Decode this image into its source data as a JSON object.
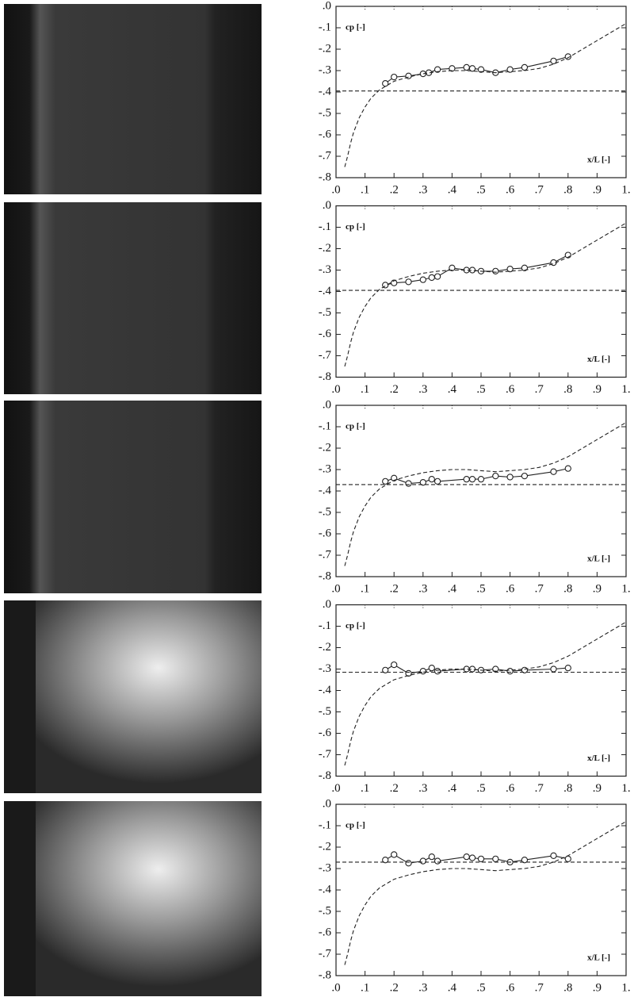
{
  "chart_data": [
    {
      "type": "line",
      "xlabel": "x/L [-]",
      "ylabel": "cp [-]",
      "xlim": [
        0,
        1
      ],
      "ylim": [
        -0.8,
        0
      ],
      "xticks": [
        {
          "value": 0,
          "label": ".0"
        },
        {
          "value": 0.1,
          "label": ".1"
        },
        {
          "value": 0.2,
          "label": ".2"
        },
        {
          "value": 0.3,
          "label": ".3"
        },
        {
          "value": 0.4,
          "label": ".4"
        },
        {
          "value": 0.5,
          "label": ".5"
        },
        {
          "value": 0.6,
          "label": ".6"
        },
        {
          "value": 0.7,
          "label": ".7"
        },
        {
          "value": 0.8,
          "label": ".8"
        },
        {
          "value": 0.9,
          "label": ".9"
        },
        {
          "value": 1,
          "label": "1."
        }
      ],
      "yticks": [
        {
          "value": 0,
          "label": ".0"
        },
        {
          "value": -0.1,
          "label": "-.1"
        },
        {
          "value": -0.2,
          "label": "-.2"
        },
        {
          "value": -0.3,
          "label": "-.3"
        },
        {
          "value": -0.4,
          "label": "-.4"
        },
        {
          "value": -0.5,
          "label": "-.5"
        },
        {
          "value": -0.6,
          "label": "-.6"
        },
        {
          "value": -0.7,
          "label": "-.7"
        },
        {
          "value": -0.8,
          "label": "-.8"
        }
      ],
      "series": [
        {
          "color": "#222",
          "linestyle": "solid",
          "marker": "circle",
          "x": [
            0.17,
            0.2,
            0.25,
            0.3,
            0.32,
            0.35,
            0.4,
            0.45,
            0.47,
            0.5,
            0.55,
            0.6,
            0.65,
            0.75,
            0.8
          ],
          "values": [
            -0.36,
            -0.33,
            -0.325,
            -0.315,
            -0.31,
            -0.295,
            -0.29,
            -0.285,
            -0.29,
            -0.295,
            -0.31,
            -0.295,
            -0.285,
            -0.255,
            -0.235
          ]
        },
        {
          "color": "#222",
          "linestyle": "dashed",
          "x": [
            0.03,
            0.04,
            0.05,
            0.06,
            0.08,
            0.1,
            0.12,
            0.15,
            0.2,
            0.25,
            0.3,
            0.35,
            0.4,
            0.45,
            0.5,
            0.55,
            0.6,
            0.65,
            0.7,
            0.75,
            0.8,
            0.85,
            0.9,
            0.95,
            1.0
          ],
          "values": [
            -0.75,
            -0.7,
            -0.64,
            -0.59,
            -0.52,
            -0.47,
            -0.43,
            -0.39,
            -0.35,
            -0.33,
            -0.315,
            -0.305,
            -0.3,
            -0.3,
            -0.305,
            -0.31,
            -0.305,
            -0.3,
            -0.29,
            -0.27,
            -0.24,
            -0.2,
            -0.16,
            -0.12,
            -0.08
          ]
        },
        {
          "color": "#222",
          "linestyle": "dashed",
          "x": [
            0,
            1
          ],
          "values": [
            -0.395,
            -0.395
          ]
        }
      ]
    },
    {
      "type": "line",
      "xlabel": "x/L [-]",
      "ylabel": "cp [-]",
      "xlim": [
        0,
        1
      ],
      "ylim": [
        -0.8,
        0
      ],
      "xticks": [
        {
          "value": 0,
          "label": ".0"
        },
        {
          "value": 0.1,
          "label": ".1"
        },
        {
          "value": 0.2,
          "label": ".2"
        },
        {
          "value": 0.3,
          "label": ".3"
        },
        {
          "value": 0.4,
          "label": ".4"
        },
        {
          "value": 0.5,
          "label": ".5"
        },
        {
          "value": 0.6,
          "label": ".6"
        },
        {
          "value": 0.7,
          "label": ".7"
        },
        {
          "value": 0.8,
          "label": ".8"
        },
        {
          "value": 0.9,
          "label": ".9"
        },
        {
          "value": 1,
          "label": "1."
        }
      ],
      "yticks": [
        {
          "value": 0,
          "label": ".0"
        },
        {
          "value": -0.1,
          "label": "-.1"
        },
        {
          "value": -0.2,
          "label": "-.2"
        },
        {
          "value": -0.3,
          "label": "-.3"
        },
        {
          "value": -0.4,
          "label": "-.4"
        },
        {
          "value": -0.5,
          "label": "-.5"
        },
        {
          "value": -0.6,
          "label": "-.6"
        },
        {
          "value": -0.7,
          "label": "-.7"
        },
        {
          "value": -0.8,
          "label": "-.8"
        }
      ],
      "series": [
        {
          "color": "#222",
          "linestyle": "solid",
          "marker": "circle",
          "x": [
            0.17,
            0.2,
            0.25,
            0.3,
            0.33,
            0.35,
            0.4,
            0.45,
            0.47,
            0.5,
            0.55,
            0.6,
            0.65,
            0.75,
            0.8
          ],
          "values": [
            -0.37,
            -0.36,
            -0.355,
            -0.345,
            -0.335,
            -0.33,
            -0.29,
            -0.3,
            -0.3,
            -0.305,
            -0.305,
            -0.295,
            -0.29,
            -0.265,
            -0.23
          ]
        },
        {
          "color": "#222",
          "linestyle": "dashed",
          "x": [
            0.03,
            0.04,
            0.05,
            0.06,
            0.08,
            0.1,
            0.12,
            0.15,
            0.2,
            0.25,
            0.3,
            0.35,
            0.4,
            0.45,
            0.5,
            0.55,
            0.6,
            0.65,
            0.7,
            0.75,
            0.8,
            0.85,
            0.9,
            0.95,
            1.0
          ],
          "values": [
            -0.75,
            -0.7,
            -0.64,
            -0.59,
            -0.52,
            -0.47,
            -0.43,
            -0.39,
            -0.35,
            -0.33,
            -0.315,
            -0.305,
            -0.3,
            -0.3,
            -0.305,
            -0.31,
            -0.305,
            -0.3,
            -0.29,
            -0.27,
            -0.24,
            -0.2,
            -0.16,
            -0.12,
            -0.08
          ]
        },
        {
          "color": "#222",
          "linestyle": "dashed",
          "x": [
            0,
            1
          ],
          "values": [
            -0.395,
            -0.395
          ]
        }
      ]
    },
    {
      "type": "line",
      "xlabel": "x/L [-]",
      "ylabel": "cp [-]",
      "xlim": [
        0,
        1
      ],
      "ylim": [
        -0.8,
        0
      ],
      "xticks": [
        {
          "value": 0,
          "label": ".0"
        },
        {
          "value": 0.1,
          "label": ".1"
        },
        {
          "value": 0.2,
          "label": ".2"
        },
        {
          "value": 0.3,
          "label": ".3"
        },
        {
          "value": 0.4,
          "label": ".4"
        },
        {
          "value": 0.5,
          "label": ".5"
        },
        {
          "value": 0.6,
          "label": ".6"
        },
        {
          "value": 0.7,
          "label": ".7"
        },
        {
          "value": 0.8,
          "label": ".8"
        },
        {
          "value": 0.9,
          "label": ".9"
        },
        {
          "value": 1,
          "label": "1."
        }
      ],
      "yticks": [
        {
          "value": 0,
          "label": ".0"
        },
        {
          "value": -0.1,
          "label": "-.1"
        },
        {
          "value": -0.2,
          "label": "-.2"
        },
        {
          "value": -0.3,
          "label": "-.3"
        },
        {
          "value": -0.4,
          "label": "-.4"
        },
        {
          "value": -0.5,
          "label": "-.5"
        },
        {
          "value": -0.6,
          "label": "-.6"
        },
        {
          "value": -0.7,
          "label": "-.7"
        },
        {
          "value": -0.8,
          "label": "-.8"
        }
      ],
      "series": [
        {
          "color": "#222",
          "linestyle": "solid",
          "marker": "circle",
          "x": [
            0.17,
            0.2,
            0.25,
            0.3,
            0.33,
            0.35,
            0.45,
            0.47,
            0.5,
            0.55,
            0.6,
            0.65,
            0.75,
            0.8
          ],
          "values": [
            -0.355,
            -0.34,
            -0.365,
            -0.36,
            -0.345,
            -0.355,
            -0.345,
            -0.345,
            -0.345,
            -0.33,
            -0.335,
            -0.33,
            -0.31,
            -0.295
          ]
        },
        {
          "color": "#222",
          "linestyle": "dashed",
          "x": [
            0.03,
            0.04,
            0.05,
            0.06,
            0.08,
            0.1,
            0.12,
            0.15,
            0.2,
            0.25,
            0.3,
            0.35,
            0.4,
            0.45,
            0.5,
            0.55,
            0.6,
            0.65,
            0.7,
            0.75,
            0.8,
            0.85,
            0.9,
            0.95,
            1.0
          ],
          "values": [
            -0.75,
            -0.7,
            -0.64,
            -0.59,
            -0.52,
            -0.47,
            -0.43,
            -0.39,
            -0.35,
            -0.33,
            -0.315,
            -0.305,
            -0.3,
            -0.3,
            -0.305,
            -0.31,
            -0.305,
            -0.3,
            -0.29,
            -0.27,
            -0.24,
            -0.2,
            -0.16,
            -0.12,
            -0.08
          ]
        },
        {
          "color": "#222",
          "linestyle": "dashed",
          "x": [
            0,
            1
          ],
          "values": [
            -0.37,
            -0.37
          ]
        }
      ]
    },
    {
      "type": "line",
      "xlabel": "x/L [-]",
      "ylabel": "cp [-]",
      "xlim": [
        0,
        1
      ],
      "ylim": [
        -0.8,
        0
      ],
      "xticks": [
        {
          "value": 0,
          "label": ".0"
        },
        {
          "value": 0.1,
          "label": ".1"
        },
        {
          "value": 0.2,
          "label": ".2"
        },
        {
          "value": 0.3,
          "label": ".3"
        },
        {
          "value": 0.4,
          "label": ".4"
        },
        {
          "value": 0.5,
          "label": ".5"
        },
        {
          "value": 0.6,
          "label": ".6"
        },
        {
          "value": 0.7,
          "label": ".7"
        },
        {
          "value": 0.8,
          "label": ".8"
        },
        {
          "value": 0.9,
          "label": ".9"
        },
        {
          "value": 1,
          "label": "1."
        }
      ],
      "yticks": [
        {
          "value": 0,
          "label": ".0"
        },
        {
          "value": -0.1,
          "label": "-.1"
        },
        {
          "value": -0.2,
          "label": "-.2"
        },
        {
          "value": -0.3,
          "label": "-.3"
        },
        {
          "value": -0.4,
          "label": "-.4"
        },
        {
          "value": -0.5,
          "label": "-.5"
        },
        {
          "value": -0.6,
          "label": "-.6"
        },
        {
          "value": -0.7,
          "label": "-.7"
        },
        {
          "value": -0.8,
          "label": "-.8"
        }
      ],
      "series": [
        {
          "color": "#222",
          "linestyle": "solid",
          "marker": "circle",
          "x": [
            0.17,
            0.2,
            0.25,
            0.3,
            0.33,
            0.35,
            0.45,
            0.47,
            0.5,
            0.55,
            0.6,
            0.65,
            0.75,
            0.8
          ],
          "values": [
            -0.305,
            -0.28,
            -0.32,
            -0.31,
            -0.295,
            -0.31,
            -0.3,
            -0.3,
            -0.305,
            -0.3,
            -0.31,
            -0.305,
            -0.3,
            -0.295
          ]
        },
        {
          "color": "#222",
          "linestyle": "dashed",
          "x": [
            0.03,
            0.04,
            0.05,
            0.06,
            0.08,
            0.1,
            0.12,
            0.15,
            0.2,
            0.25,
            0.3,
            0.35,
            0.4,
            0.45,
            0.5,
            0.55,
            0.6,
            0.65,
            0.7,
            0.75,
            0.8,
            0.85,
            0.9,
            0.95,
            1.0
          ],
          "values": [
            -0.75,
            -0.7,
            -0.64,
            -0.59,
            -0.52,
            -0.47,
            -0.43,
            -0.39,
            -0.35,
            -0.33,
            -0.315,
            -0.305,
            -0.3,
            -0.3,
            -0.305,
            -0.31,
            -0.305,
            -0.3,
            -0.29,
            -0.27,
            -0.24,
            -0.2,
            -0.16,
            -0.12,
            -0.08
          ]
        },
        {
          "color": "#222",
          "linestyle": "dashed",
          "x": [
            0,
            1
          ],
          "values": [
            -0.315,
            -0.315
          ]
        }
      ]
    },
    {
      "type": "line",
      "xlabel": "x/L [-]",
      "ylabel": "cp [-]",
      "xlim": [
        0,
        1
      ],
      "ylim": [
        -0.8,
        0
      ],
      "xticks": [
        {
          "value": 0,
          "label": ".0"
        },
        {
          "value": 0.1,
          "label": ".1"
        },
        {
          "value": 0.2,
          "label": ".2"
        },
        {
          "value": 0.3,
          "label": ".3"
        },
        {
          "value": 0.4,
          "label": ".4"
        },
        {
          "value": 0.5,
          "label": ".5"
        },
        {
          "value": 0.6,
          "label": ".6"
        },
        {
          "value": 0.7,
          "label": ".7"
        },
        {
          "value": 0.8,
          "label": ".8"
        },
        {
          "value": 0.9,
          "label": ".9"
        },
        {
          "value": 1,
          "label": "1."
        }
      ],
      "yticks": [
        {
          "value": 0,
          "label": ".0"
        },
        {
          "value": -0.1,
          "label": "-.1"
        },
        {
          "value": -0.2,
          "label": "-.2"
        },
        {
          "value": -0.3,
          "label": "-.3"
        },
        {
          "value": -0.4,
          "label": "-.4"
        },
        {
          "value": -0.5,
          "label": "-.5"
        },
        {
          "value": -0.6,
          "label": "-.6"
        },
        {
          "value": -0.7,
          "label": "-.7"
        },
        {
          "value": -0.8,
          "label": "-.8"
        }
      ],
      "series": [
        {
          "color": "#222",
          "linestyle": "solid",
          "marker": "circle",
          "x": [
            0.17,
            0.2,
            0.25,
            0.3,
            0.33,
            0.35,
            0.45,
            0.47,
            0.5,
            0.55,
            0.6,
            0.65,
            0.75,
            0.8
          ],
          "values": [
            -0.26,
            -0.235,
            -0.275,
            -0.265,
            -0.245,
            -0.265,
            -0.245,
            -0.25,
            -0.255,
            -0.255,
            -0.27,
            -0.26,
            -0.24,
            -0.255
          ]
        },
        {
          "color": "#222",
          "linestyle": "dashed",
          "x": [
            0.03,
            0.04,
            0.05,
            0.06,
            0.08,
            0.1,
            0.12,
            0.15,
            0.2,
            0.25,
            0.3,
            0.35,
            0.4,
            0.45,
            0.5,
            0.55,
            0.6,
            0.65,
            0.7,
            0.75,
            0.8,
            0.85,
            0.9,
            0.95,
            1.0
          ],
          "values": [
            -0.75,
            -0.7,
            -0.64,
            -0.59,
            -0.52,
            -0.47,
            -0.43,
            -0.39,
            -0.35,
            -0.33,
            -0.315,
            -0.305,
            -0.3,
            -0.3,
            -0.305,
            -0.31,
            -0.305,
            -0.3,
            -0.29,
            -0.27,
            -0.24,
            -0.2,
            -0.16,
            -0.12,
            -0.08
          ]
        },
        {
          "color": "#222",
          "linestyle": "dashed",
          "x": [
            0,
            1
          ],
          "values": [
            -0.27,
            -0.27
          ]
        }
      ]
    }
  ]
}
